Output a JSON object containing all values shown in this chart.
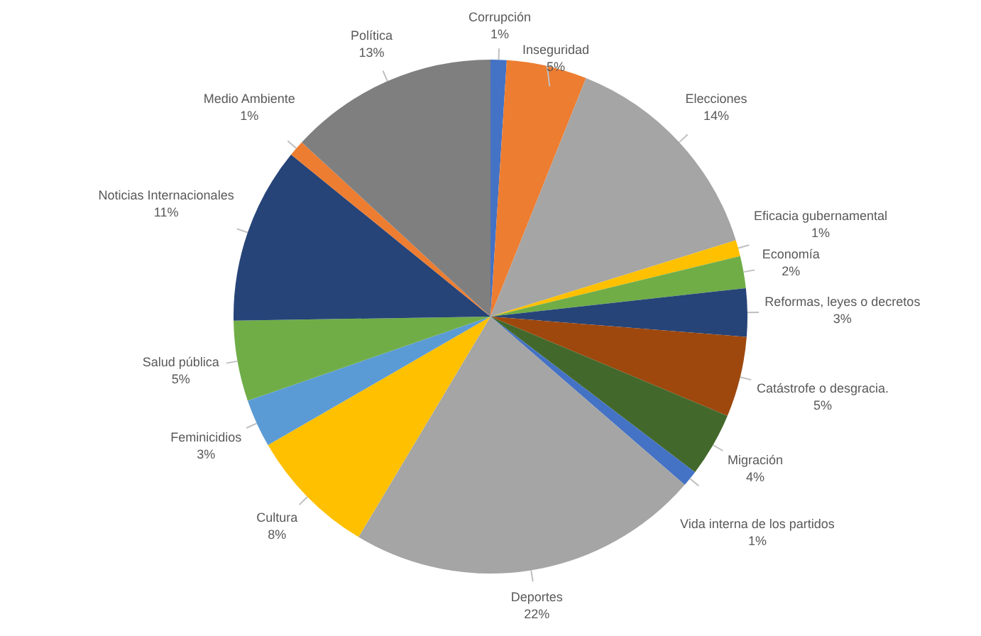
{
  "chart_data": {
    "type": "pie",
    "categories": [
      "Corrupción",
      "Inseguridad",
      "Elecciones",
      "Eficacia gubernamental",
      "Economía",
      "Reformas, leyes o decretos",
      "Catástrofe o desgracia.",
      "Migración",
      "Vida interna de los partidos",
      "Deportes",
      "Cultura",
      "Feminicidios",
      "Salud pública",
      "Noticias Internacionales",
      "Medio Ambiente",
      "Política"
    ],
    "values": [
      1,
      5,
      14,
      1,
      2,
      3,
      5,
      4,
      1,
      22,
      8,
      3,
      5,
      11,
      1,
      13
    ],
    "value_labels": [
      "1%",
      "5%",
      "14%",
      "1%",
      "2%",
      "3%",
      "5%",
      "4%",
      "1%",
      "22%",
      "8%",
      "3%",
      "5%",
      "11%",
      "1%",
      "13%"
    ],
    "colors": [
      "#4472c4",
      "#ed7d31",
      "#a5a5a5",
      "#ffc000",
      "#70ad47",
      "#264478",
      "#9e480e",
      "#43682b",
      "#4472c4",
      "#a5a5a5",
      "#ffc000",
      "#5b9bd5",
      "#70ad47",
      "#264478",
      "#ed7d31",
      "#7f7f7f"
    ],
    "legend": false
  }
}
